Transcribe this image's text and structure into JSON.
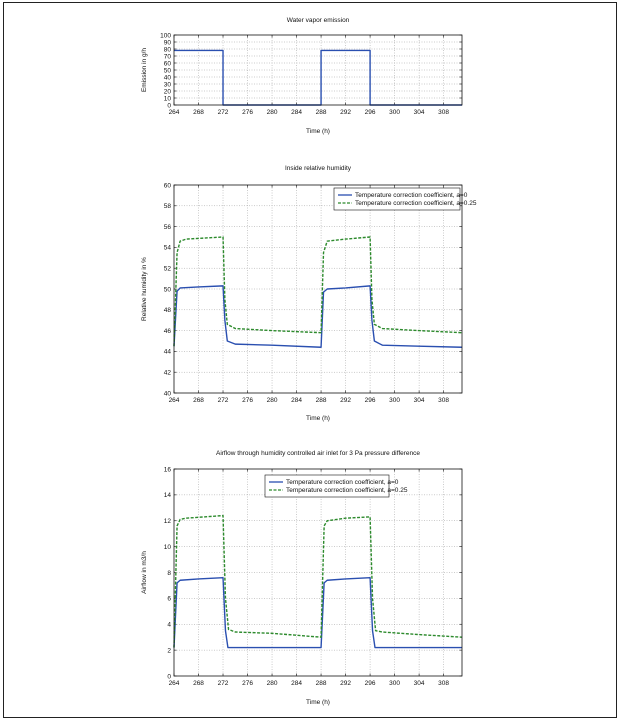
{
  "chart_data": [
    {
      "type": "line",
      "title": "Water vapor emission",
      "xlabel": "Time (h)",
      "ylabel": "Emission in g/h",
      "xlim": [
        264,
        311
      ],
      "ylim": [
        0,
        100
      ],
      "xticks": [
        264,
        268,
        272,
        276,
        280,
        284,
        288,
        292,
        296,
        300,
        304,
        308
      ],
      "yticks": [
        0,
        10,
        20,
        30,
        40,
        50,
        60,
        70,
        80,
        90,
        100
      ],
      "grid": true,
      "legend": null,
      "series": [
        {
          "color": "#2a4fb0",
          "dash": "solid",
          "points": [
            [
              264,
              78
            ],
            [
              272,
              78
            ],
            [
              272,
              0
            ],
            [
              288,
              0
            ],
            [
              288,
              78
            ],
            [
              296,
              78
            ],
            [
              296,
              0
            ],
            [
              311,
              0
            ]
          ]
        }
      ]
    },
    {
      "type": "line",
      "title": "Inside relative humidity",
      "xlabel": "Time (h)",
      "ylabel": "Relative humidity in %",
      "xlim": [
        264,
        311
      ],
      "ylim": [
        40,
        60
      ],
      "xticks": [
        264,
        268,
        272,
        276,
        280,
        284,
        288,
        292,
        296,
        300,
        304,
        308
      ],
      "yticks": [
        40,
        42,
        44,
        46,
        48,
        50,
        52,
        54,
        56,
        58,
        60
      ],
      "grid": true,
      "legend": "top-right",
      "series": [
        {
          "name": "Temperature correction coefficient, a=0",
          "color": "#2a4fb0",
          "dash": "solid",
          "points": [
            [
              264,
              44.5
            ],
            [
              264.5,
              49.8
            ],
            [
              265,
              50.1
            ],
            [
              268,
              50.2
            ],
            [
              272,
              50.3
            ],
            [
              272.3,
              47.0
            ],
            [
              272.7,
              45.0
            ],
            [
              274,
              44.7
            ],
            [
              280,
              44.6
            ],
            [
              288,
              44.4
            ],
            [
              288.4,
              49.7
            ],
            [
              289,
              50.0
            ],
            [
              292,
              50.1
            ],
            [
              296,
              50.3
            ],
            [
              296.3,
              47.0
            ],
            [
              296.7,
              45.0
            ],
            [
              298,
              44.6
            ],
            [
              304,
              44.5
            ],
            [
              311,
              44.4
            ]
          ]
        },
        {
          "name": "Temperature correction coefficient, a=0.25",
          "color": "#2c8a2c",
          "dash": "dashed",
          "points": [
            [
              264,
              44.5
            ],
            [
              264.5,
              53.5
            ],
            [
              265,
              54.6
            ],
            [
              266,
              54.8
            ],
            [
              272,
              55.0
            ],
            [
              272.3,
              49.0
            ],
            [
              272.7,
              46.6
            ],
            [
              274,
              46.2
            ],
            [
              280,
              46.0
            ],
            [
              288,
              45.8
            ],
            [
              288.4,
              53.5
            ],
            [
              289,
              54.6
            ],
            [
              292,
              54.8
            ],
            [
              296,
              55.0
            ],
            [
              296.3,
              49.0
            ],
            [
              296.7,
              46.6
            ],
            [
              298,
              46.2
            ],
            [
              304,
              46.0
            ],
            [
              311,
              45.8
            ]
          ]
        }
      ]
    },
    {
      "type": "line",
      "title": "Airflow through humidity controlled air inlet for 3 Pa pressure difference",
      "xlabel": "Time (h)",
      "ylabel": "Airflow in m3/h",
      "xlim": [
        264,
        311
      ],
      "ylim": [
        0,
        16
      ],
      "xticks": [
        264,
        268,
        272,
        276,
        280,
        284,
        288,
        292,
        296,
        300,
        304,
        308
      ],
      "yticks": [
        0,
        2,
        4,
        6,
        8,
        10,
        12,
        14,
        16
      ],
      "grid": true,
      "legend": "top-center",
      "series": [
        {
          "name": "Temperature correction coefficient, a=0",
          "color": "#2a4fb0",
          "dash": "solid",
          "points": [
            [
              264,
              2.2
            ],
            [
              264.5,
              7.2
            ],
            [
              265,
              7.4
            ],
            [
              268,
              7.5
            ],
            [
              272,
              7.6
            ],
            [
              272.4,
              3.5
            ],
            [
              272.8,
              2.2
            ],
            [
              280,
              2.2
            ],
            [
              288,
              2.2
            ],
            [
              288.5,
              7.2
            ],
            [
              289,
              7.4
            ],
            [
              292,
              7.5
            ],
            [
              296,
              7.6
            ],
            [
              296.4,
              3.5
            ],
            [
              296.8,
              2.2
            ],
            [
              304,
              2.2
            ],
            [
              311,
              2.2
            ]
          ]
        },
        {
          "name": "Temperature correction coefficient, a=0.25",
          "color": "#2c8a2c",
          "dash": "dashed",
          "points": [
            [
              264,
              2.2
            ],
            [
              264.5,
              11.6
            ],
            [
              265,
              12.1
            ],
            [
              266,
              12.2
            ],
            [
              272,
              12.4
            ],
            [
              272.4,
              6.0
            ],
            [
              272.9,
              3.6
            ],
            [
              274,
              3.4
            ],
            [
              280,
              3.3
            ],
            [
              288,
              3.0
            ],
            [
              288.5,
              11.6
            ],
            [
              289,
              12.0
            ],
            [
              292,
              12.2
            ],
            [
              296,
              12.3
            ],
            [
              296.4,
              6.0
            ],
            [
              296.9,
              3.5
            ],
            [
              298,
              3.4
            ],
            [
              304,
              3.2
            ],
            [
              311,
              3.0
            ]
          ]
        }
      ]
    }
  ]
}
